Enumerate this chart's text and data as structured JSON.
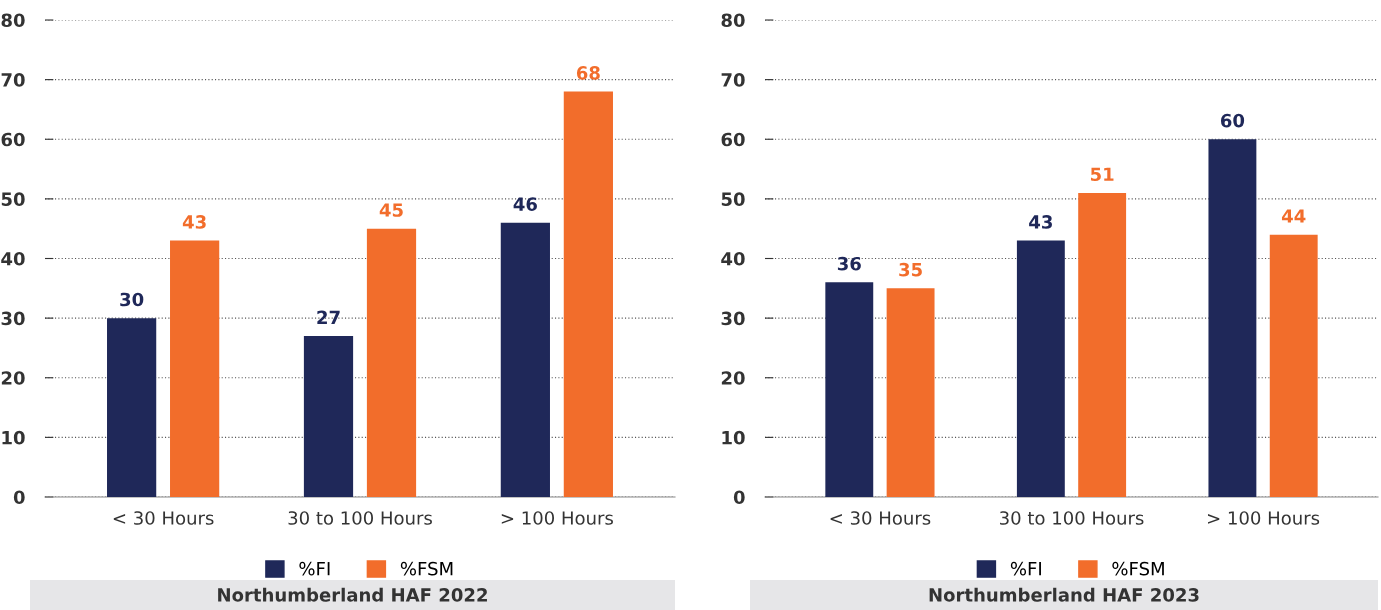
{
  "chart_data": [
    {
      "type": "bar",
      "title": "Northumberland HAF 2022",
      "categories": [
        "< 30 Hours",
        "30 to 100 Hours",
        "> 100 Hours"
      ],
      "series": [
        {
          "name": "%FI",
          "color": "#1f2859",
          "values": [
            30,
            27,
            46
          ]
        },
        {
          "name": "%FSM",
          "color": "#f26d2b",
          "values": [
            43,
            45,
            68
          ]
        }
      ],
      "ylim": [
        0,
        80
      ],
      "yticks": [
        0,
        10,
        20,
        30,
        40,
        50,
        60,
        70,
        80
      ],
      "grid": "y",
      "legend": "bottom",
      "data_labels": true
    },
    {
      "type": "bar",
      "title": "Northumberland HAF 2023",
      "categories": [
        "< 30 Hours",
        "30 to 100 Hours",
        "> 100 Hours"
      ],
      "series": [
        {
          "name": "%FI",
          "color": "#1f2859",
          "values": [
            36,
            43,
            60
          ]
        },
        {
          "name": "%FSM",
          "color": "#f26d2b",
          "values": [
            35,
            51,
            44
          ]
        }
      ],
      "ylim": [
        0,
        80
      ],
      "yticks": [
        0,
        10,
        20,
        30,
        40,
        50,
        60,
        70,
        80
      ],
      "grid": "y",
      "legend": "bottom",
      "data_labels": true
    }
  ]
}
